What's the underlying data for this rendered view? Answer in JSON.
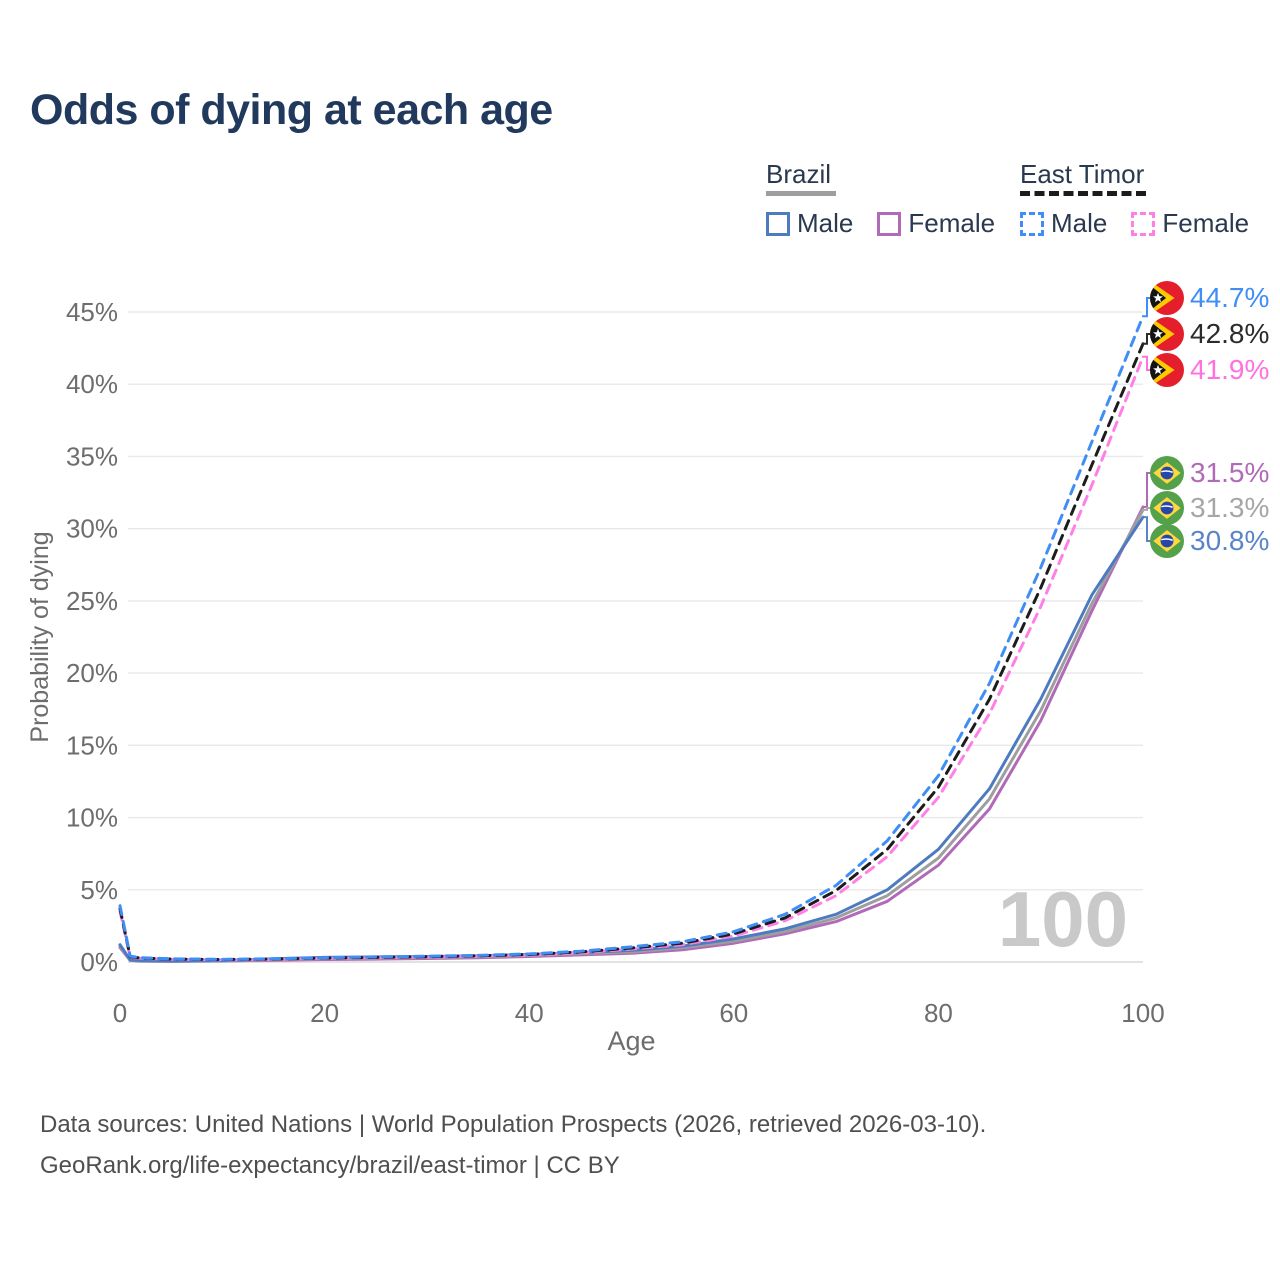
{
  "title": "Odds of dying at each age",
  "watermark": "100",
  "legend": {
    "groups": [
      {
        "name": "Brazil",
        "line_color": "#9e9e9e",
        "line_dash": false,
        "items": [
          {
            "label": "Male",
            "color": "#4e7bc0",
            "dash": false
          },
          {
            "label": "Female",
            "color": "#b06ab8",
            "dash": false
          }
        ]
      },
      {
        "name": "East Timor",
        "line_color": "#1c1c1c",
        "line_dash": true,
        "items": [
          {
            "label": "Male",
            "color": "#3f8ef5",
            "dash": true
          },
          {
            "label": "Female",
            "color": "#ff80e5",
            "dash": true
          }
        ]
      }
    ]
  },
  "footer": {
    "line1": "Data sources: United Nations | World Population Prospects (2026, retrieved 2026-03-10).",
    "line2": "GeoRank.org/life-expectancy/brazil/east-timor | CC BY"
  },
  "chart_data": {
    "type": "line",
    "title": "Odds of dying at each age",
    "xlabel": "Age",
    "ylabel": "Probability of dying",
    "xlim": [
      0,
      100
    ],
    "ylim": [
      0,
      45
    ],
    "xticks": [
      0,
      20,
      40,
      60,
      80,
      100
    ],
    "ytick_step": 5,
    "ytick_suffix": "%",
    "grid": "horizontal",
    "x": [
      0,
      1,
      2,
      5,
      10,
      15,
      20,
      25,
      30,
      35,
      40,
      45,
      50,
      55,
      60,
      65,
      70,
      75,
      80,
      85,
      90,
      95,
      100
    ],
    "series": [
      {
        "key": "brazil-female",
        "name": "Brazil — Female",
        "color": "#b06ab8",
        "dash": false,
        "values": [
          1.0,
          0.11,
          0.06,
          0.05,
          0.07,
          0.12,
          0.17,
          0.2,
          0.24,
          0.29,
          0.38,
          0.49,
          0.6,
          0.85,
          1.3,
          1.95,
          2.8,
          4.2,
          6.7,
          10.6,
          16.7,
          24.3,
          31.5
        ]
      },
      {
        "key": "brazil-total",
        "name": "Brazil — Both sexes",
        "color": "#9e9e9e",
        "dash": false,
        "values": [
          1.1,
          0.12,
          0.07,
          0.05,
          0.08,
          0.17,
          0.24,
          0.27,
          0.31,
          0.36,
          0.45,
          0.58,
          0.7,
          0.98,
          1.45,
          2.1,
          3.05,
          4.6,
          7.2,
          11.3,
          17.4,
          24.8,
          31.3
        ]
      },
      {
        "key": "brazil-male",
        "name": "Brazil — Male",
        "color": "#4e7bc0",
        "dash": false,
        "values": [
          1.2,
          0.14,
          0.08,
          0.06,
          0.1,
          0.22,
          0.32,
          0.35,
          0.38,
          0.43,
          0.52,
          0.66,
          0.8,
          1.1,
          1.6,
          2.3,
          3.3,
          5.0,
          7.8,
          12.0,
          18.2,
          25.4,
          30.8
        ]
      },
      {
        "key": "east-timor-female",
        "name": "East Timor — Female",
        "color": "#ff80e5",
        "dash": true,
        "values": [
          3.5,
          0.34,
          0.26,
          0.19,
          0.15,
          0.18,
          0.25,
          0.29,
          0.34,
          0.4,
          0.48,
          0.64,
          0.9,
          1.2,
          1.8,
          2.85,
          4.6,
          7.3,
          11.4,
          17.2,
          24.6,
          33.0,
          41.9
        ]
      },
      {
        "key": "east-timor-total",
        "name": "East Timor — Both sexes",
        "color": "#1c1c1c",
        "dash": true,
        "values": [
          3.7,
          0.37,
          0.28,
          0.2,
          0.17,
          0.2,
          0.28,
          0.32,
          0.37,
          0.43,
          0.52,
          0.7,
          0.97,
          1.3,
          1.95,
          3.05,
          4.95,
          7.8,
          12.1,
          18.2,
          25.9,
          34.4,
          42.8
        ]
      },
      {
        "key": "east-timor-male",
        "name": "East Timor — Male",
        "color": "#3f8ef5",
        "dash": true,
        "values": [
          3.9,
          0.4,
          0.3,
          0.22,
          0.18,
          0.22,
          0.3,
          0.35,
          0.4,
          0.46,
          0.56,
          0.75,
          1.05,
          1.4,
          2.1,
          3.3,
          5.3,
          8.4,
          12.9,
          19.3,
          27.3,
          36.0,
          44.7
        ]
      }
    ],
    "end_labels": [
      {
        "series": "East Timor — Male",
        "label": "44.7%",
        "value": 44.7,
        "color": "#3f8ef5",
        "flag": "flag-east-timor"
      },
      {
        "series": "East Timor — Both sexes",
        "label": "42.8%",
        "value": 42.8,
        "color": "#2b2b2b",
        "flag": "flag-east-timor"
      },
      {
        "series": "East Timor — Female",
        "label": "41.9%",
        "value": 41.9,
        "color": "#ff70e0",
        "flag": "flag-east-timor"
      },
      {
        "series": "Brazil — Female",
        "label": "31.5%",
        "value": 31.5,
        "color": "#b06ab8",
        "flag": "flag-brazil"
      },
      {
        "series": "Brazil — Both sexes",
        "label": "31.3%",
        "value": 31.3,
        "color": "#a6a6a6",
        "flag": "flag-brazil"
      },
      {
        "series": "Brazil — Male",
        "label": "30.8%",
        "value": 30.8,
        "color": "#5b84c8",
        "flag": "flag-brazil"
      }
    ]
  }
}
